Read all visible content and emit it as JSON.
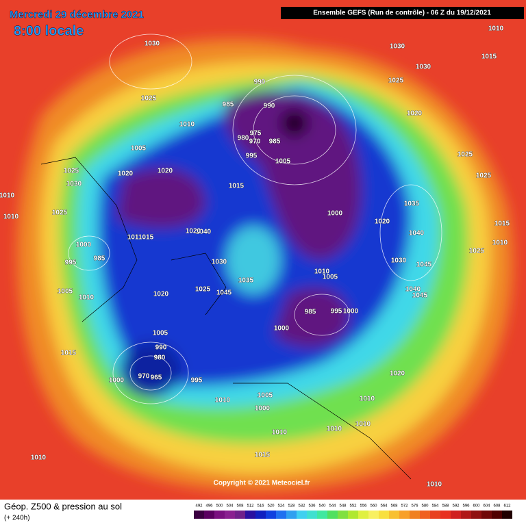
{
  "header": {
    "date": "Mercredi 29 décembre 2021",
    "time": "8:00 locale",
    "run": "Ensemble GEFS (Run de contrôle)  -  06 Z du 19/12/2021"
  },
  "footer": {
    "title": "Géop. Z500 & pression au sol",
    "lead": "(+ 240h)",
    "copyright": "Copyright © 2021 Meteociel.fr"
  },
  "colorbar": {
    "ticks": [
      492,
      496,
      500,
      504,
      508,
      512,
      516,
      520,
      524,
      528,
      532,
      536,
      540,
      544,
      548,
      552,
      556,
      560,
      564,
      568,
      572,
      576,
      580,
      584,
      588,
      592,
      596,
      600,
      604,
      608,
      612
    ],
    "colors": [
      "#3a0040",
      "#5a0060",
      "#7a1080",
      "#8a2090",
      "#70208a",
      "#2a10a0",
      "#1020c0",
      "#1040e0",
      "#2070f0",
      "#30a0f0",
      "#40d0f0",
      "#40e0d0",
      "#40e8a0",
      "#50e060",
      "#80e040",
      "#b0e830",
      "#e0f040",
      "#f8f060",
      "#f8e040",
      "#f8c030",
      "#f8a028",
      "#f08020",
      "#f06020",
      "#e84020",
      "#e83020",
      "#d02020",
      "#b01818",
      "#901010",
      "#700808",
      "#500000",
      "#200000"
    ]
  },
  "isobar_labels": [
    "1030",
    "1025",
    "1010",
    "1005",
    "1020",
    "1020",
    "1025",
    "1030",
    "1025",
    "1010",
    "1010",
    "1000",
    "985",
    "995",
    "1005",
    "1010",
    "1020",
    "1005",
    "990",
    "980",
    "970",
    "965",
    "1000",
    "995",
    "1015",
    "1010",
    "1010",
    "1005",
    "1000",
    "1010",
    "1015",
    "1010",
    "1010",
    "1010",
    "1020",
    "1010",
    "990",
    "990",
    "985",
    "975",
    "970",
    "980",
    "985",
    "995",
    "1005",
    "1015",
    "1000",
    "1020",
    "1035",
    "1040",
    "1030",
    "1045",
    "1040",
    "1045",
    "1010",
    "1005",
    "985",
    "995",
    "1000",
    "1000",
    "1030",
    "1030",
    "1025",
    "1020",
    "1025",
    "1025",
    "1010",
    "1015",
    "1015",
    "1010",
    "1025",
    "1030",
    "1035",
    "1025",
    "1045",
    "1040",
    "1020",
    "1011015"
  ]
}
